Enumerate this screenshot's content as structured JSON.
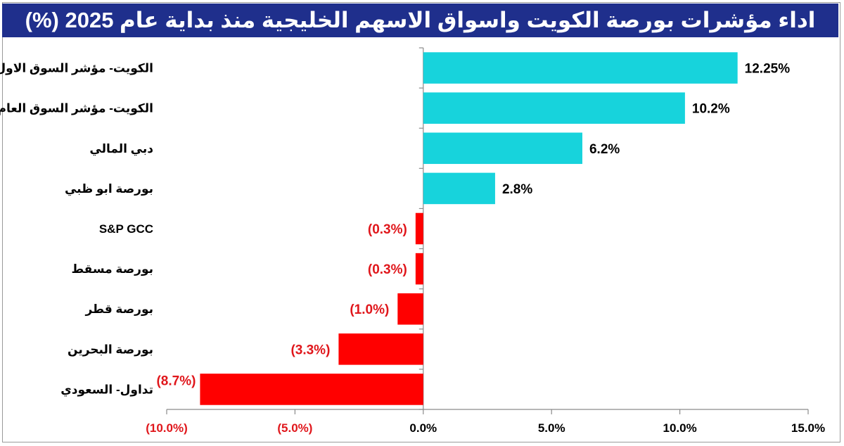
{
  "chart_data": {
    "type": "bar",
    "orientation": "horizontal",
    "title": "اداء مؤشرات بورصة الكويت واسواق الاسهم الخليجية منذ بداية عام 2025 (%)",
    "categories": [
      "الكويت- مؤشر السوق الاول",
      "الكويت- مؤشر السوق العام",
      "دبي المالي",
      "بورصة ابو ظبي",
      "S&P GCC",
      "بورصة مسقط",
      "بورصة قطر",
      "بورصة البحرين",
      "تداول- السعودي"
    ],
    "values": [
      12.25,
      10.2,
      6.2,
      2.8,
      -0.3,
      -0.3,
      -1.0,
      -3.3,
      -8.7
    ],
    "value_labels": [
      "12.25%",
      "10.2%",
      "6.2%",
      "2.8%",
      "(0.3%)",
      "(0.3%)",
      "(1.0%)",
      "(3.3%)",
      "(8.7%)"
    ],
    "xlim": [
      -10,
      15
    ],
    "x_ticks": [
      -10,
      -5,
      0,
      5,
      10,
      15
    ],
    "x_tick_labels": [
      "(10.0%)",
      "(5.0%)",
      "0.0%",
      "5.0%",
      "10.0%",
      "15.0%"
    ],
    "colors": {
      "positive": "#17d3dc",
      "negative": "#ff0000",
      "negative_text": "#e0161b",
      "positive_text": "#000000",
      "title_bg": "#1f2f8c"
    },
    "grid": false,
    "legend": "none"
  }
}
